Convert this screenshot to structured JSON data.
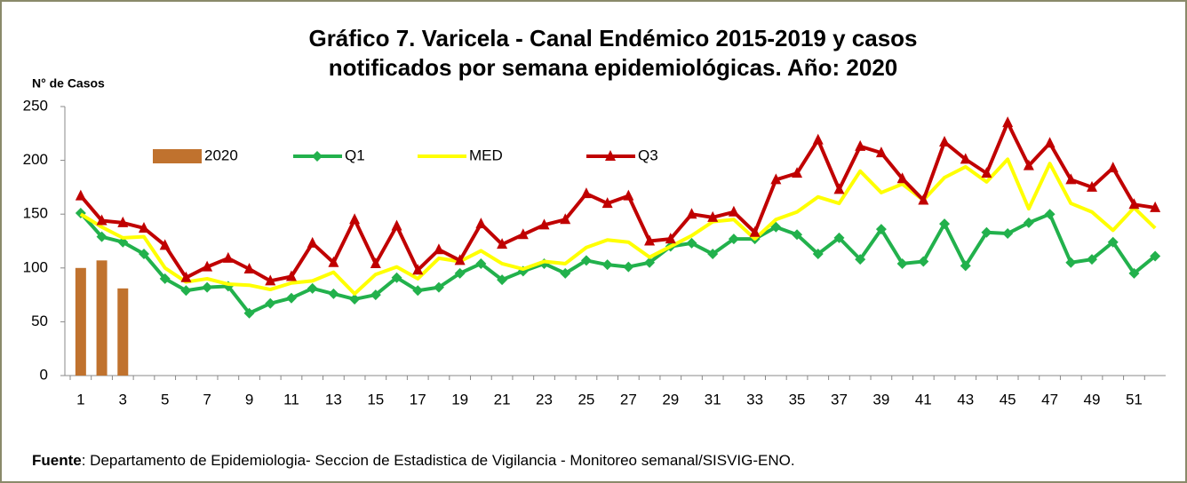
{
  "chart_data": {
    "type": "combo",
    "title_lines": [
      "Gráfico 7.  Varicela - Canal Endémico 2015-2019 y casos",
      "notificados por semana epidemiológicas.  Año: 2020"
    ],
    "y_label": "N° de Casos",
    "source_label": "Fuente",
    "source_text": ": Departamento de Epidemiologia- Seccion de Estadistica de Vigilancia - Monitoreo semanal/SISVIG-ENO.",
    "categories": [
      "1",
      null,
      "3",
      null,
      "5",
      null,
      "7",
      null,
      "9",
      null,
      "11",
      null,
      "13",
      null,
      "15",
      null,
      "17",
      null,
      "19",
      null,
      "21",
      null,
      "23",
      null,
      "25",
      null,
      "27",
      null,
      "29",
      null,
      "31",
      null,
      "33",
      null,
      "35",
      null,
      "37",
      null,
      "39",
      null,
      "41",
      null,
      "43",
      null,
      "45",
      null,
      "47",
      null,
      "49",
      null,
      "51",
      null
    ],
    "ylim": [
      0,
      250
    ],
    "yticks": [
      0,
      50,
      100,
      150,
      200,
      250
    ],
    "series": [
      {
        "name": "2020",
        "type": "bar",
        "color": "#c0722e",
        "values": [
          100,
          107,
          81,
          null,
          null,
          null,
          null,
          null,
          null,
          null,
          null,
          null,
          null,
          null,
          null,
          null,
          null,
          null,
          null,
          null,
          null,
          null,
          null,
          null,
          null,
          null,
          null,
          null,
          null,
          null,
          null,
          null,
          null,
          null,
          null,
          null,
          null,
          null,
          null,
          null,
          null,
          null,
          null,
          null,
          null,
          null,
          null,
          null,
          null,
          null,
          null,
          null
        ]
      },
      {
        "name": "Q1",
        "type": "line",
        "marker": "diamond",
        "color": "#22b14c",
        "values": [
          151,
          129,
          124,
          113,
          90,
          79,
          82,
          83,
          58,
          67,
          72,
          81,
          76,
          71,
          75,
          91,
          79,
          82,
          95,
          104,
          89,
          97,
          104,
          95,
          107,
          103,
          101,
          105,
          120,
          123,
          113,
          127,
          127,
          138,
          131,
          113,
          128,
          108,
          136,
          104,
          106,
          141,
          102,
          133,
          132,
          142,
          150,
          105,
          108,
          124,
          95,
          111
        ]
      },
      {
        "name": "MED",
        "type": "line",
        "marker": "none",
        "color": "#ffff00",
        "values": [
          150,
          138,
          128,
          129,
          100,
          87,
          90,
          85,
          84,
          80,
          86,
          88,
          96,
          76,
          94,
          101,
          90,
          109,
          106,
          116,
          104,
          99,
          106,
          104,
          119,
          126,
          124,
          110,
          120,
          130,
          143,
          145,
          127,
          145,
          152,
          166,
          160,
          190,
          170,
          178,
          163,
          184,
          194,
          180,
          201,
          155,
          197,
          160,
          152,
          135,
          156,
          137
        ]
      },
      {
        "name": "Q3",
        "type": "line",
        "marker": "triangle",
        "color": "#c00000",
        "values": [
          167,
          144,
          142,
          137,
          121,
          91,
          101,
          109,
          99,
          88,
          92,
          123,
          105,
          145,
          104,
          139,
          98,
          117,
          107,
          141,
          122,
          131,
          140,
          145,
          169,
          160,
          167,
          125,
          127,
          150,
          147,
          152,
          133,
          182,
          188,
          219,
          173,
          213,
          207,
          183,
          163,
          217,
          201,
          188,
          235,
          195,
          216,
          182,
          175,
          193,
          159,
          156
        ]
      }
    ]
  }
}
